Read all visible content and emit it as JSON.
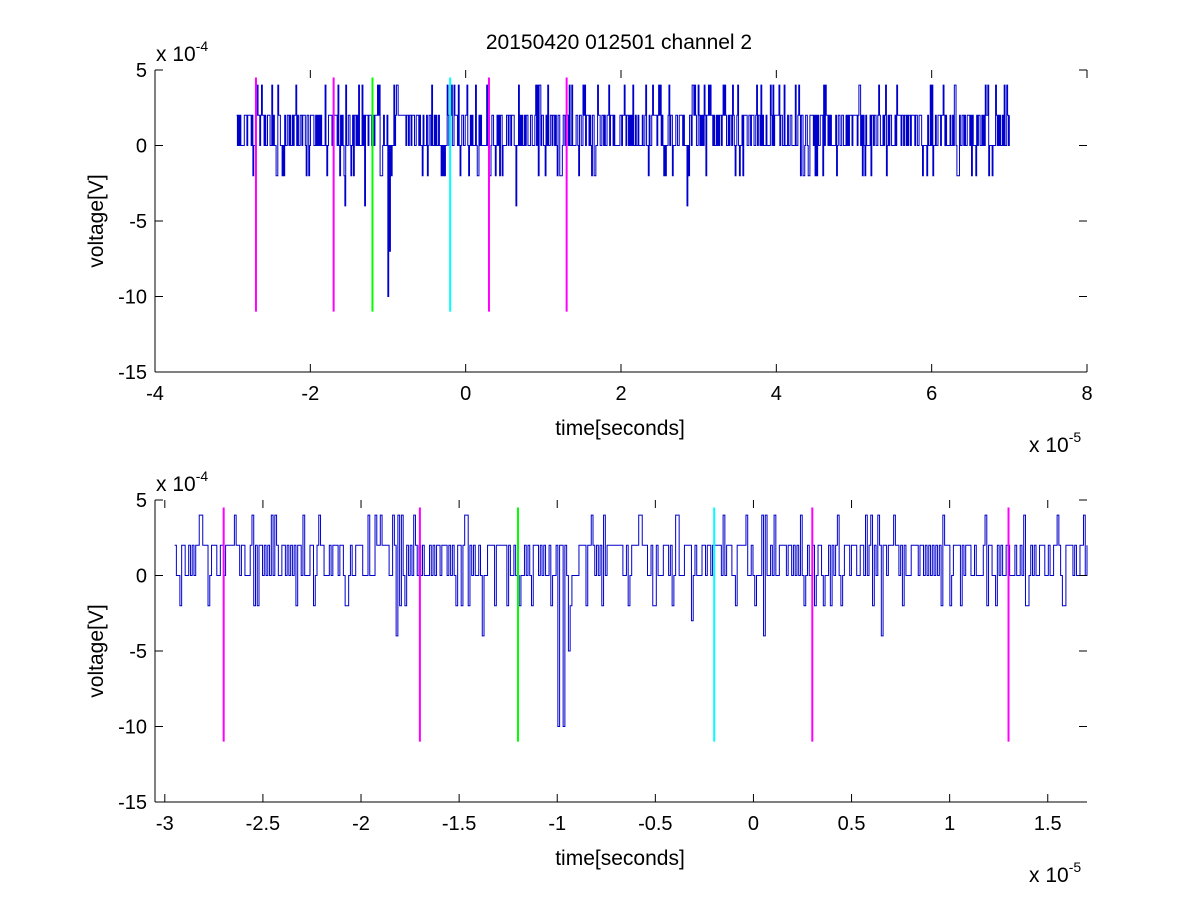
{
  "figure": {
    "title": "20150420 012501 channel 2"
  },
  "colors": {
    "signal": "#0000cc",
    "magenta": "#ff00ff",
    "green": "#00ff00",
    "cyan": "#00ffff",
    "axes": "#000000",
    "background": "#ffffff"
  },
  "chart_data": [
    {
      "type": "line",
      "xlabel": "time[seconds]",
      "ylabel": "voltage[V]",
      "x_multiplier_label": "x 10",
      "x_multiplier_exp": "-5",
      "y_multiplier_label": "x 10",
      "y_multiplier_exp": "-4",
      "xlim": [
        -4,
        8
      ],
      "ylim": [
        -15,
        5
      ],
      "xticks": [
        -4,
        -2,
        0,
        2,
        4,
        6,
        8
      ],
      "xtick_labels": [
        "-4",
        "-2",
        "0",
        "2",
        "4",
        "6",
        "8"
      ],
      "yticks": [
        -15,
        -10,
        -5,
        0,
        5
      ],
      "ytick_labels": [
        "-15",
        "-10",
        "-5",
        "0",
        "5"
      ],
      "grid": false,
      "signal": {
        "x_start": -2.95,
        "x_end": 7.0,
        "levels": [
          -2,
          0,
          2,
          4
        ],
        "spikes": [
          {
            "x": -1.55,
            "y": -4
          },
          {
            "x": -1.3,
            "y": -4
          },
          {
            "x": -1.0,
            "y": -10
          },
          {
            "x": -0.98,
            "y": -7
          },
          {
            "x": 0.65,
            "y": -4
          },
          {
            "x": 2.85,
            "y": -4
          }
        ]
      },
      "markers": [
        {
          "x": -2.7,
          "y_min": -11,
          "y_max": 4.5,
          "color": "magenta"
        },
        {
          "x": -1.7,
          "y_min": -11,
          "y_max": 4.5,
          "color": "magenta"
        },
        {
          "x": -1.2,
          "y_min": -11,
          "y_max": 4.5,
          "color": "green"
        },
        {
          "x": -0.2,
          "y_min": -11,
          "y_max": 4.5,
          "color": "cyan"
        },
        {
          "x": 0.3,
          "y_min": -11,
          "y_max": 4.5,
          "color": "magenta"
        },
        {
          "x": 1.3,
          "y_min": -11,
          "y_max": 4.5,
          "color": "magenta"
        }
      ]
    },
    {
      "type": "line",
      "xlabel": "time[seconds]",
      "ylabel": "voltage[V]",
      "x_multiplier_label": "x 10",
      "x_multiplier_exp": "-5",
      "y_multiplier_label": "x 10",
      "y_multiplier_exp": "-4",
      "xlim": [
        -3.05,
        1.7
      ],
      "ylim": [
        -15,
        5
      ],
      "xticks": [
        -3,
        -2.5,
        -2,
        -1.5,
        -1,
        -0.5,
        0,
        0.5,
        1,
        1.5
      ],
      "xtick_labels": [
        "-3",
        "-2.5",
        "-2",
        "-1.5",
        "-1",
        "-0.5",
        "0",
        "0.5",
        "1",
        "1.5"
      ],
      "yticks": [
        -15,
        -10,
        -5,
        0,
        5
      ],
      "ytick_labels": [
        "-15",
        "-10",
        "-5",
        "0",
        "5"
      ],
      "grid": false,
      "signal": {
        "x_start": -2.95,
        "x_end": 1.7,
        "levels": [
          -2,
          0,
          2,
          4
        ],
        "spikes": [
          {
            "x": -1.82,
            "y": -4
          },
          {
            "x": -1.38,
            "y": -4
          },
          {
            "x": -1.0,
            "y": -10
          },
          {
            "x": -0.97,
            "y": -10
          },
          {
            "x": -0.94,
            "y": -5
          },
          {
            "x": -0.32,
            "y": -3
          },
          {
            "x": 0.05,
            "y": -4
          },
          {
            "x": 0.65,
            "y": -4
          }
        ]
      },
      "markers": [
        {
          "x": -2.7,
          "y_min": -11,
          "y_max": 4.5,
          "color": "magenta"
        },
        {
          "x": -1.7,
          "y_min": -11,
          "y_max": 4.5,
          "color": "magenta"
        },
        {
          "x": -1.2,
          "y_min": -11,
          "y_max": 4.5,
          "color": "green"
        },
        {
          "x": -0.2,
          "y_min": -11,
          "y_max": 4.5,
          "color": "cyan"
        },
        {
          "x": 0.3,
          "y_min": -11,
          "y_max": 4.5,
          "color": "magenta"
        },
        {
          "x": 1.3,
          "y_min": -11,
          "y_max": 4.5,
          "color": "magenta"
        }
      ]
    }
  ]
}
